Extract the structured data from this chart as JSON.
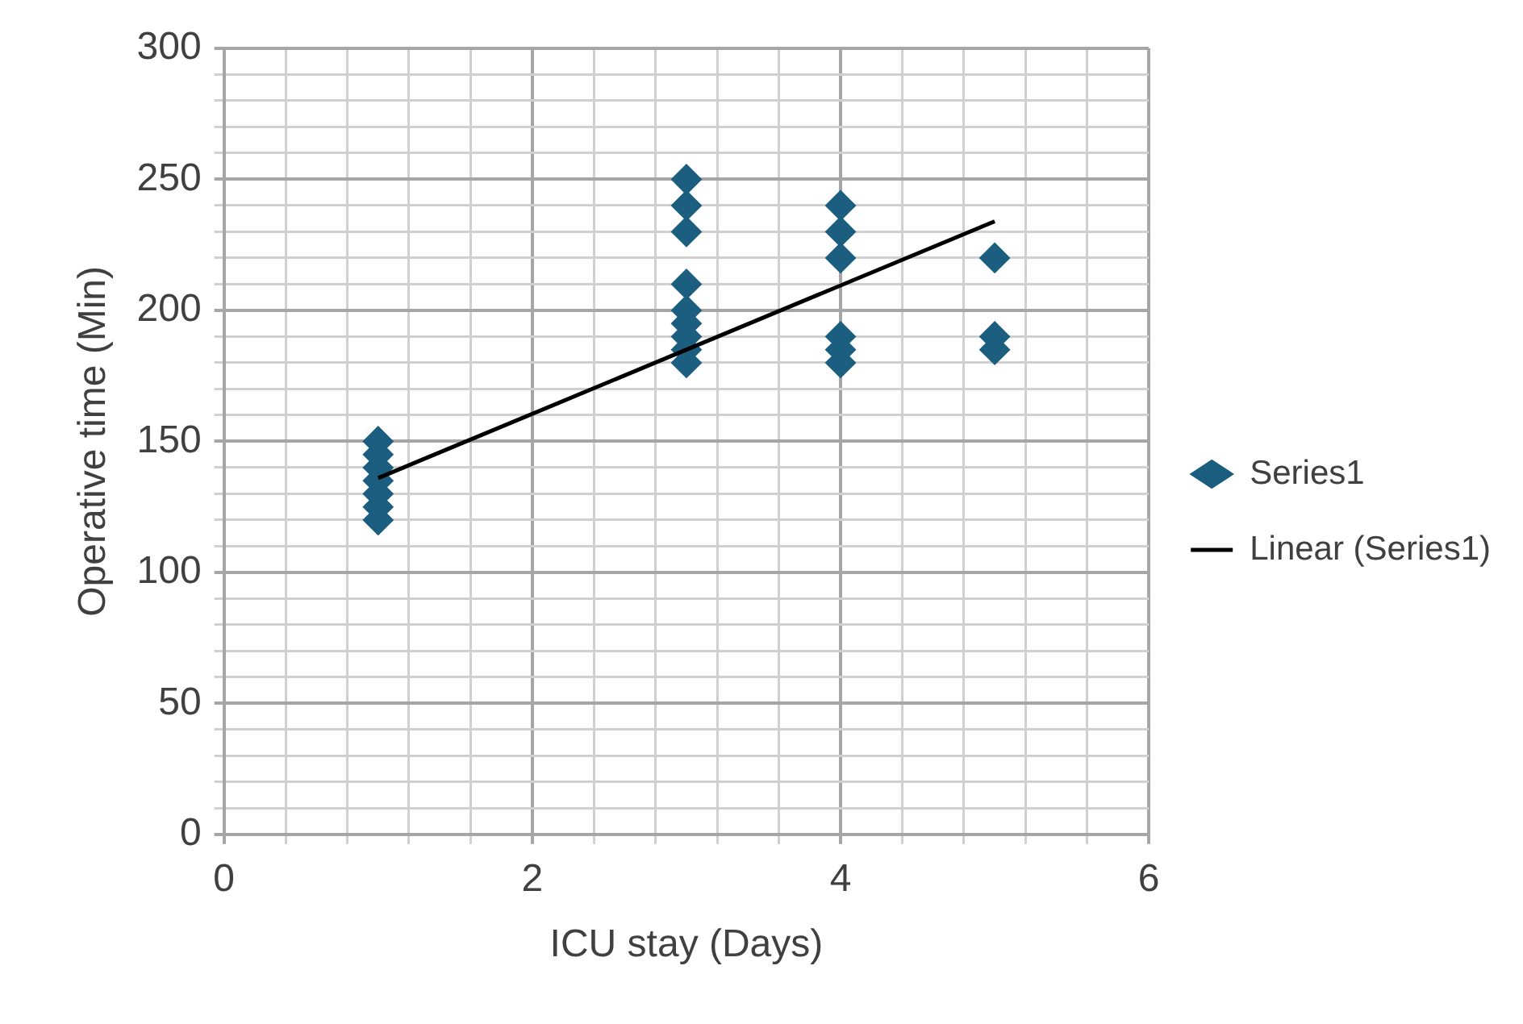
{
  "chart_data": {
    "type": "scatter",
    "xlabel": "ICU stay (Days)",
    "ylabel": "Operative time (Min)",
    "xlim": [
      0,
      6
    ],
    "ylim": [
      0,
      300
    ],
    "xticks": [
      0,
      {
        "value": 0.4,
        "label": null
      },
      {
        "value": 0.8,
        "label": null
      },
      {
        "value": 1.2,
        "label": null
      },
      {
        "value": 1.6,
        "label": null
      },
      2,
      {
        "value": 2.4,
        "label": null
      },
      {
        "value": 2.8,
        "label": null
      },
      {
        "value": 3.2,
        "label": null
      },
      {
        "value": 3.6,
        "label": null
      },
      4,
      {
        "value": 4.4,
        "label": null
      },
      {
        "value": 4.8,
        "label": null
      },
      {
        "value": 5.2,
        "label": null
      },
      {
        "value": 5.6,
        "label": null
      },
      6
    ],
    "yticks": [
      0,
      {
        "value": 10,
        "label": null
      },
      {
        "value": 20,
        "label": null
      },
      {
        "value": 30,
        "label": null
      },
      {
        "value": 40,
        "label": null
      },
      50,
      {
        "value": 60,
        "label": null
      },
      {
        "value": 70,
        "label": null
      },
      {
        "value": 80,
        "label": null
      },
      {
        "value": 90,
        "label": null
      },
      100,
      {
        "value": 110,
        "label": null
      },
      {
        "value": 120,
        "label": null
      },
      {
        "value": 130,
        "label": null
      },
      {
        "value": 140,
        "label": null
      },
      150,
      {
        "value": 160,
        "label": null
      },
      {
        "value": 170,
        "label": null
      },
      {
        "value": 180,
        "label": null
      },
      {
        "value": 190,
        "label": null
      },
      200,
      {
        "value": 210,
        "label": null
      },
      {
        "value": 220,
        "label": null
      },
      {
        "value": 230,
        "label": null
      },
      {
        "value": 240,
        "label": null
      },
      250,
      {
        "value": 260,
        "label": null
      },
      {
        "value": 270,
        "label": null
      },
      {
        "value": 280,
        "label": null
      },
      {
        "value": 290,
        "label": null
      },
      300
    ],
    "grid": true,
    "legend": "right",
    "marker": "diamond",
    "series": [
      {
        "name": "Series1",
        "type": "scatter",
        "color": "#1b5e80",
        "x": [
          1,
          1,
          1,
          1,
          1,
          1,
          1,
          3,
          3,
          3,
          3,
          3,
          3,
          3,
          3,
          3,
          4,
          4,
          4,
          4,
          4,
          4,
          5,
          5,
          5
        ],
        "values": [
          120,
          125,
          130,
          135,
          140,
          145,
          150,
          180,
          185,
          190,
          195,
          200,
          210,
          230,
          240,
          250,
          180,
          185,
          190,
          220,
          230,
          240,
          185,
          190,
          220
        ]
      },
      {
        "name": "Linear (Series1)",
        "type": "line",
        "color": "#000000",
        "x": [
          1,
          5
        ],
        "values": [
          136,
          234
        ],
        "marker": "none",
        "line_style": "solid"
      }
    ]
  }
}
